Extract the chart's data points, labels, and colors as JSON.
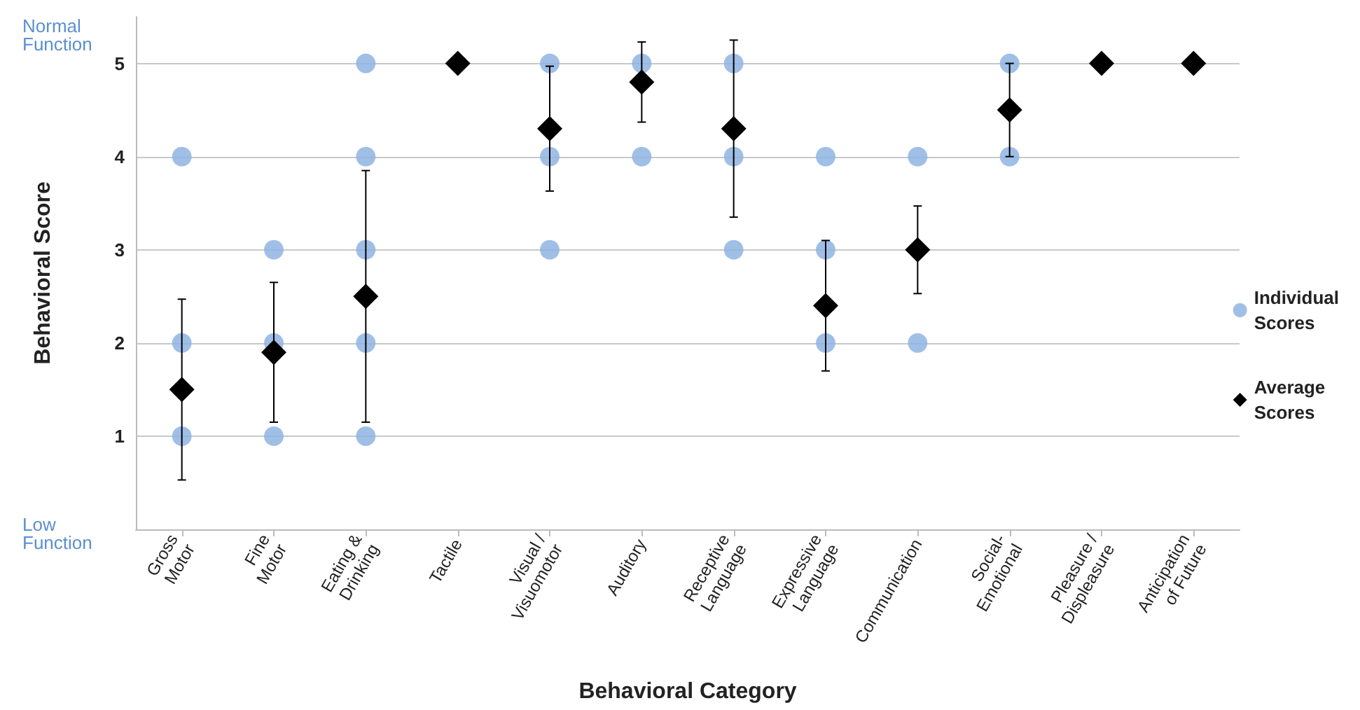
{
  "chart_data": {
    "type": "scatter",
    "xlabel": "Behavioral Category",
    "ylabel": "Behavioral Score",
    "categories": [
      "Gross\nMotor",
      "Fine\nMotor",
      "Eating &\nDrinking",
      "Tactile",
      "Visual /\nVisuomotor",
      "Auditory",
      "Receptive\nLanguage",
      "Expressive\nLanguage",
      "Communication",
      "Social-\nEmotional",
      "Pleasure /\nDispleasure",
      "Anticipation\nof Future"
    ],
    "ylim": [
      0,
      5.5
    ],
    "yticks": [
      1,
      2,
      3,
      4,
      5
    ],
    "grid": "y",
    "legend": "right",
    "annotations": [
      "Normal\nFunction",
      "Low\nFunction"
    ],
    "series": [
      {
        "name": "Individual Scores",
        "color": "#8fb4e3",
        "marker": "circle",
        "x": [
          "Gross\nMotor",
          "Gross\nMotor",
          "Gross\nMotor",
          "Fine\nMotor",
          "Fine\nMotor",
          "Fine\nMotor",
          "Eating &\nDrinking",
          "Eating &\nDrinking",
          "Eating &\nDrinking",
          "Eating &\nDrinking",
          "Eating &\nDrinking",
          "Tactile",
          "Visual /\nVisuomotor",
          "Visual /\nVisuomotor",
          "Visual /\nVisuomotor",
          "Auditory",
          "Auditory",
          "Receptive\nLanguage",
          "Receptive\nLanguage",
          "Receptive\nLanguage",
          "Expressive\nLanguage",
          "Expressive\nLanguage",
          "Expressive\nLanguage",
          "Communication",
          "Communication",
          "Communication",
          "Social-\nEmotional",
          "Social-\nEmotional",
          "Pleasure /\nDispleasure",
          "Anticipation\nof Future"
        ],
        "values": [
          4,
          2,
          1,
          3,
          2,
          1,
          5,
          4,
          3,
          2,
          1,
          null,
          5,
          4,
          3,
          5,
          4,
          5,
          4,
          3,
          4,
          3,
          2,
          4,
          null,
          2,
          5,
          4,
          null,
          null
        ]
      },
      {
        "name": "Average Scores",
        "color": "#000000",
        "marker": "diamond",
        "values": [
          1.5,
          1.9,
          2.5,
          5,
          4.3,
          4.8,
          4.3,
          2.4,
          3,
          4.5,
          5,
          5
        ],
        "errors": [
          0.97,
          0.75,
          1.35,
          null,
          0.67,
          0.43,
          0.95,
          0.7,
          0.47,
          0.5,
          null,
          null
        ]
      }
    ]
  }
}
